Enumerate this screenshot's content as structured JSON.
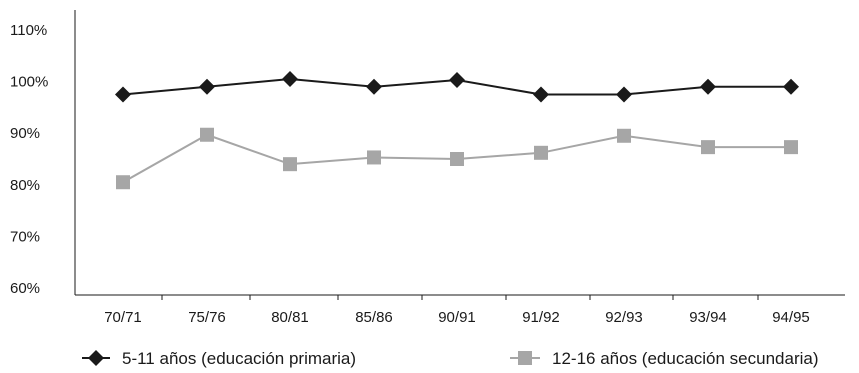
{
  "chart_data": {
    "type": "line",
    "title": "",
    "xlabel": "",
    "ylabel": "",
    "categories": [
      "70/71",
      "75/76",
      "80/81",
      "85/86",
      "90/91",
      "91/92",
      "92/93",
      "93/94",
      "94/95"
    ],
    "ylim": [
      60,
      110
    ],
    "yticks": [
      60,
      70,
      80,
      90,
      100,
      110
    ],
    "ytick_labels": [
      "60%",
      "70%",
      "80%",
      "90%",
      "100%",
      "110%"
    ],
    "grid": false,
    "legend_position": "bottom",
    "series": [
      {
        "name": "5-11 años (educación primaria)",
        "values": [
          97.5,
          99.0,
          100.5,
          99.0,
          100.3,
          97.5,
          97.5,
          99.0,
          99.0
        ],
        "color": "#1a1a1a",
        "marker": "diamond"
      },
      {
        "name": "12-16 años (educación secundaria)",
        "values": [
          80.5,
          89.7,
          84.0,
          85.3,
          85.0,
          86.2,
          89.5,
          87.3,
          87.3
        ],
        "color": "#a6a6a6",
        "marker": "square"
      }
    ]
  }
}
